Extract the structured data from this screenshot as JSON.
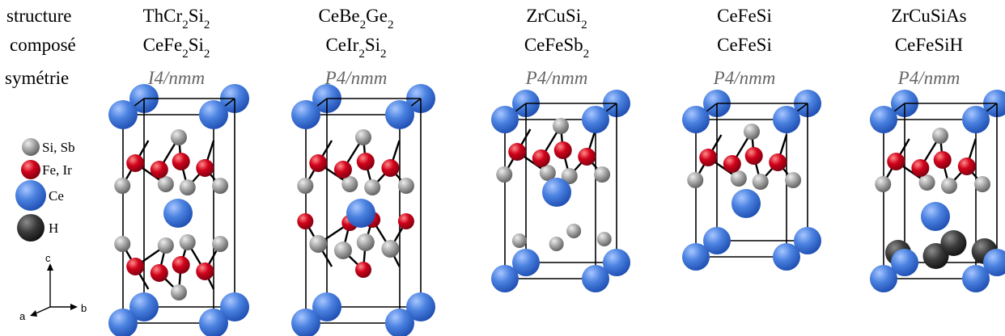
{
  "row_labels": {
    "structure": "structure",
    "compose": "composé",
    "symmetry": "symétrie"
  },
  "columns": [
    {
      "structure": [
        "ThCr",
        "2",
        "Si",
        "2"
      ],
      "compound": [
        "CeFe",
        "2",
        "Si",
        "2"
      ],
      "symmetry": "I4/nmm"
    },
    {
      "structure": [
        "CeBe",
        "2",
        "Ge",
        "2"
      ],
      "compound": [
        "CeIr",
        "2",
        "Si",
        "2"
      ],
      "symmetry": "P4/nmm"
    },
    {
      "structure": [
        "ZrCuSi",
        "2"
      ],
      "compound": [
        "CeFeSb",
        "2"
      ],
      "symmetry": "P4/nmm"
    },
    {
      "structure": [
        "CeFeSi"
      ],
      "compound": [
        "CeFeSi"
      ],
      "symmetry": "P4/nmm"
    },
    {
      "structure": [
        "ZrCuSiAs"
      ],
      "compound": [
        "CeFeSiH"
      ],
      "symmetry": "P4/nmm"
    }
  ],
  "legend": [
    {
      "label": "Si, Sb",
      "color": "#9a9a9a"
    },
    {
      "label": "Fe, Ir",
      "color": "#d0021b"
    },
    {
      "label": "Ce",
      "color": "#3f78d6"
    },
    {
      "label": "H",
      "color": "#3a3a3a"
    }
  ],
  "axes": {
    "c": "c",
    "a": "a",
    "b": "b"
  }
}
